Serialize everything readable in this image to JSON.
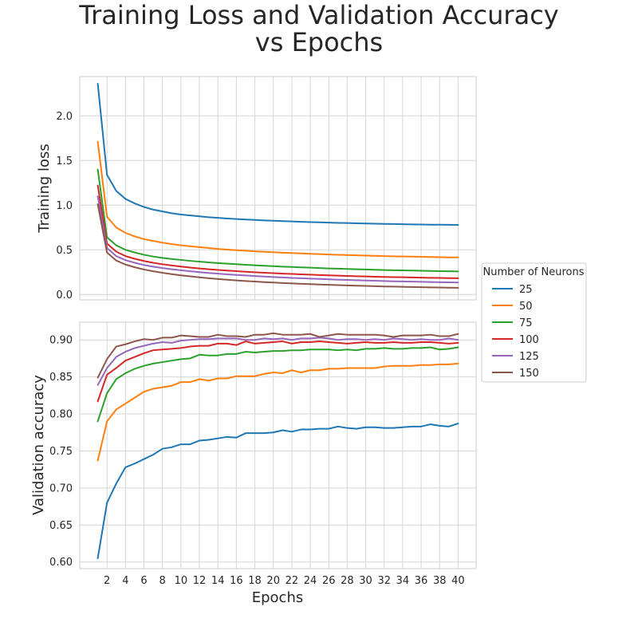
{
  "title_line1": "Training Loss and Validation Accuracy",
  "title_line2": "vs Epochs",
  "chart_data": {
    "type": "line",
    "x_label": "Epochs",
    "x": [
      1,
      2,
      3,
      4,
      5,
      6,
      7,
      8,
      9,
      10,
      11,
      12,
      13,
      14,
      15,
      16,
      17,
      18,
      19,
      20,
      21,
      22,
      23,
      24,
      25,
      26,
      27,
      28,
      29,
      30,
      31,
      32,
      33,
      34,
      35,
      36,
      37,
      38,
      39,
      40
    ],
    "x_ticks": [
      2,
      4,
      6,
      8,
      10,
      12,
      14,
      16,
      18,
      20,
      22,
      24,
      26,
      28,
      30,
      32,
      34,
      36,
      38,
      40
    ],
    "xlim": [
      -0.95,
      41.95
    ],
    "grid": true,
    "legend": {
      "title": "Number of Neurons",
      "placement": "right",
      "entries": [
        "25",
        "50",
        "75",
        "100",
        "125",
        "150"
      ]
    },
    "colors": [
      "#1f77b4",
      "#ff7f0e",
      "#2ca02c",
      "#d62728",
      "#9467bd",
      "#8c564b"
    ],
    "panels": [
      {
        "ylabel": "Training loss",
        "ylim": [
          -0.06,
          2.44
        ],
        "yticks": [
          0.0,
          0.5,
          1.0,
          1.5,
          2.0
        ],
        "ytick_labels": [
          "0.0",
          "0.5",
          "1.0",
          "1.5",
          "2.0"
        ],
        "series": [
          {
            "name": "25",
            "values": [
              2.36,
              1.34,
              1.16,
              1.07,
              1.02,
              0.98,
              0.95,
              0.93,
              0.91,
              0.895,
              0.885,
              0.875,
              0.865,
              0.858,
              0.851,
              0.845,
              0.84,
              0.835,
              0.83,
              0.826,
              0.822,
              0.818,
              0.814,
              0.811,
              0.808,
              0.805,
              0.802,
              0.8,
              0.797,
              0.795,
              0.793,
              0.791,
              0.789,
              0.787,
              0.785,
              0.784,
              0.782,
              0.781,
              0.78,
              0.779
            ]
          },
          {
            "name": "50",
            "values": [
              1.71,
              0.87,
              0.75,
              0.69,
              0.65,
              0.62,
              0.6,
              0.58,
              0.565,
              0.55,
              0.54,
              0.53,
              0.52,
              0.51,
              0.503,
              0.496,
              0.49,
              0.484,
              0.478,
              0.473,
              0.468,
              0.464,
              0.46,
              0.456,
              0.452,
              0.448,
              0.445,
              0.442,
              0.439,
              0.436,
              0.433,
              0.43,
              0.428,
              0.426,
              0.424,
              0.422,
              0.42,
              0.418,
              0.416,
              0.415
            ]
          },
          {
            "name": "75",
            "values": [
              1.4,
              0.64,
              0.55,
              0.5,
              0.47,
              0.445,
              0.425,
              0.41,
              0.398,
              0.387,
              0.377,
              0.368,
              0.36,
              0.352,
              0.345,
              0.339,
              0.333,
              0.327,
              0.322,
              0.317,
              0.312,
              0.308,
              0.304,
              0.3,
              0.296,
              0.292,
              0.289,
              0.286,
              0.283,
              0.28,
              0.277,
              0.274,
              0.272,
              0.27,
              0.268,
              0.266,
              0.264,
              0.262,
              0.26,
              0.258
            ]
          },
          {
            "name": "100",
            "values": [
              1.22,
              0.57,
              0.48,
              0.43,
              0.4,
              0.375,
              0.355,
              0.339,
              0.325,
              0.313,
              0.302,
              0.292,
              0.283,
              0.275,
              0.268,
              0.261,
              0.255,
              0.249,
              0.244,
              0.239,
              0.234,
              0.23,
              0.226,
              0.222,
              0.218,
              0.214,
              0.211,
              0.208,
              0.205,
              0.202,
              0.199,
              0.197,
              0.195,
              0.193,
              0.191,
              0.189,
              0.187,
              0.185,
              0.183,
              0.182
            ]
          },
          {
            "name": "125",
            "values": [
              1.1,
              0.52,
              0.43,
              0.385,
              0.355,
              0.33,
              0.312,
              0.296,
              0.283,
              0.271,
              0.26,
              0.25,
              0.241,
              0.233,
              0.226,
              0.219,
              0.213,
              0.207,
              0.201,
              0.196,
              0.191,
              0.186,
              0.182,
              0.178,
              0.174,
              0.17,
              0.166,
              0.163,
              0.16,
              0.157,
              0.154,
              0.151,
              0.148,
              0.146,
              0.144,
              0.142,
              0.14,
              0.138,
              0.136,
              0.134
            ]
          },
          {
            "name": "150",
            "values": [
              1.01,
              0.47,
              0.38,
              0.335,
              0.305,
              0.28,
              0.26,
              0.243,
              0.228,
              0.215,
              0.203,
              0.192,
              0.182,
              0.173,
              0.165,
              0.158,
              0.151,
              0.145,
              0.139,
              0.134,
              0.129,
              0.124,
              0.12,
              0.116,
              0.112,
              0.108,
              0.105,
              0.102,
              0.099,
              0.096,
              0.093,
              0.09,
              0.088,
              0.086,
              0.084,
              0.082,
              0.08,
              0.078,
              0.076,
              0.075
            ]
          }
        ]
      },
      {
        "ylabel": "Validation accuracy",
        "ylim": [
          0.5911,
          0.9239
        ],
        "yticks": [
          0.6,
          0.65,
          0.7,
          0.75,
          0.8,
          0.85,
          0.9
        ],
        "ytick_labels": [
          "0.60",
          "0.65",
          "0.70",
          "0.75",
          "0.80",
          "0.85",
          "0.90"
        ],
        "series": [
          {
            "name": "25",
            "values": [
              0.605,
              0.68,
              0.706,
              0.728,
              0.733,
              0.739,
              0.745,
              0.753,
              0.755,
              0.759,
              0.759,
              0.764,
              0.765,
              0.767,
              0.769,
              0.768,
              0.774,
              0.774,
              0.774,
              0.775,
              0.778,
              0.776,
              0.779,
              0.779,
              0.78,
              0.78,
              0.783,
              0.781,
              0.78,
              0.782,
              0.782,
              0.781,
              0.781,
              0.782,
              0.783,
              0.783,
              0.786,
              0.784,
              0.783,
              0.787
            ]
          },
          {
            "name": "50",
            "values": [
              0.737,
              0.79,
              0.806,
              0.814,
              0.822,
              0.83,
              0.834,
              0.836,
              0.838,
              0.843,
              0.843,
              0.847,
              0.845,
              0.848,
              0.848,
              0.851,
              0.851,
              0.851,
              0.854,
              0.856,
              0.855,
              0.859,
              0.856,
              0.859,
              0.859,
              0.861,
              0.861,
              0.862,
              0.862,
              0.862,
              0.862,
              0.864,
              0.865,
              0.865,
              0.865,
              0.866,
              0.866,
              0.867,
              0.867,
              0.868
            ]
          },
          {
            "name": "75",
            "values": [
              0.79,
              0.828,
              0.847,
              0.855,
              0.861,
              0.865,
              0.868,
              0.87,
              0.872,
              0.874,
              0.875,
              0.88,
              0.879,
              0.879,
              0.881,
              0.881,
              0.884,
              0.883,
              0.884,
              0.885,
              0.885,
              0.886,
              0.886,
              0.887,
              0.887,
              0.887,
              0.886,
              0.887,
              0.886,
              0.888,
              0.888,
              0.889,
              0.888,
              0.888,
              0.889,
              0.889,
              0.89,
              0.887,
              0.888,
              0.89
            ]
          },
          {
            "name": "100",
            "values": [
              0.817,
              0.853,
              0.862,
              0.872,
              0.877,
              0.882,
              0.886,
              0.887,
              0.888,
              0.889,
              0.891,
              0.892,
              0.892,
              0.895,
              0.895,
              0.893,
              0.898,
              0.895,
              0.896,
              0.897,
              0.898,
              0.895,
              0.897,
              0.897,
              0.898,
              0.897,
              0.896,
              0.895,
              0.896,
              0.897,
              0.896,
              0.896,
              0.897,
              0.896,
              0.896,
              0.897,
              0.897,
              0.896,
              0.895,
              0.896
            ]
          },
          {
            "name": "125",
            "values": [
              0.839,
              0.862,
              0.877,
              0.884,
              0.889,
              0.892,
              0.895,
              0.897,
              0.896,
              0.899,
              0.9,
              0.901,
              0.901,
              0.902,
              0.902,
              0.902,
              0.9,
              0.9,
              0.902,
              0.901,
              0.902,
              0.9,
              0.902,
              0.902,
              0.903,
              0.902,
              0.9,
              0.901,
              0.901,
              0.9,
              0.901,
              0.9,
              0.902,
              0.901,
              0.9,
              0.901,
              0.9,
              0.9,
              0.902,
              0.9
            ]
          },
          {
            "name": "150",
            "values": [
              0.849,
              0.874,
              0.891,
              0.894,
              0.898,
              0.901,
              0.9,
              0.903,
              0.903,
              0.906,
              0.905,
              0.904,
              0.904,
              0.907,
              0.905,
              0.905,
              0.904,
              0.907,
              0.907,
              0.909,
              0.907,
              0.907,
              0.907,
              0.908,
              0.904,
              0.906,
              0.908,
              0.907,
              0.907,
              0.907,
              0.907,
              0.906,
              0.904,
              0.906,
              0.906,
              0.906,
              0.907,
              0.905,
              0.905,
              0.908
            ]
          }
        ]
      }
    ]
  }
}
